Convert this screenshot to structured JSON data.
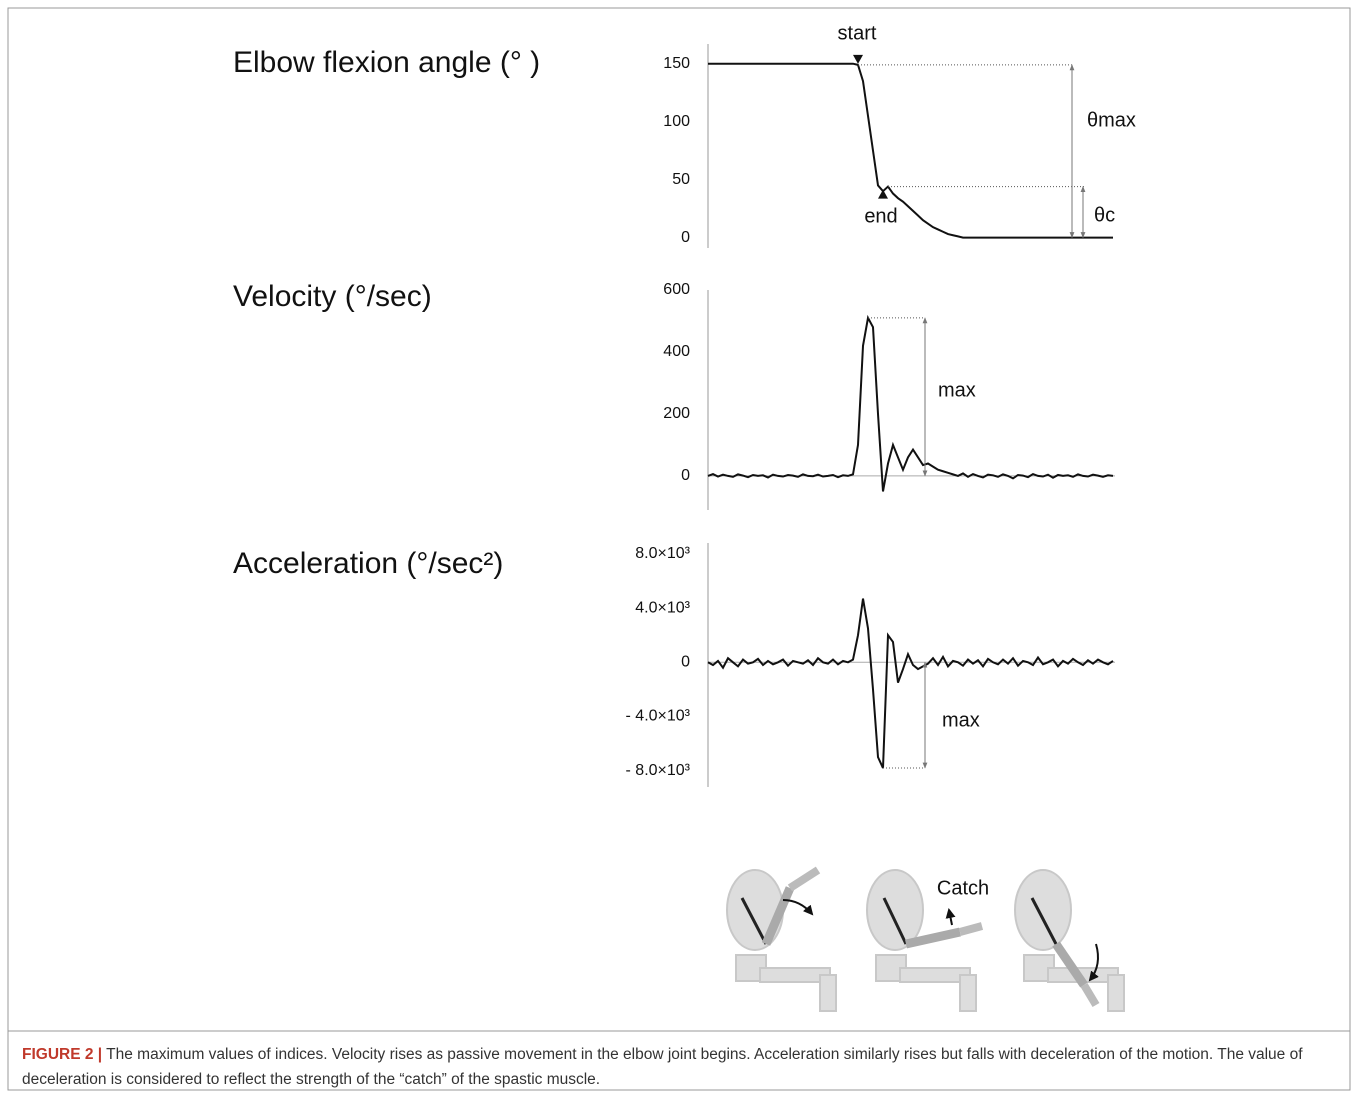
{
  "chart_data": [
    {
      "type": "line",
      "title": "Elbow flexion angle (° )",
      "values": [
        150,
        150,
        150,
        150,
        150,
        150,
        150,
        150,
        150,
        150,
        150,
        150,
        150,
        150,
        150,
        150,
        150,
        150,
        150,
        150,
        150,
        150,
        150,
        150,
        150,
        150,
        150,
        150,
        150,
        150,
        149,
        135,
        105,
        75,
        45,
        40,
        44,
        38,
        34,
        31,
        27,
        23,
        19,
        15,
        12,
        9,
        7,
        5,
        3,
        2,
        1,
        0,
        0,
        0,
        0,
        0,
        0,
        0,
        0,
        0,
        0,
        0,
        0,
        0,
        0,
        0,
        0,
        0,
        0,
        0,
        0,
        0,
        0,
        0,
        0,
        0,
        0,
        0,
        0,
        0,
        0,
        0
      ],
      "color": "#111111",
      "ylim": [
        -9,
        167
      ],
      "yticks": [
        0,
        50,
        100,
        150
      ],
      "zero_line": false,
      "annotations": {
        "start": "start",
        "end": "end",
        "theta_max": "θmax",
        "theta_c": "θc"
      }
    },
    {
      "type": "line",
      "title": "Velocity (°/sec)",
      "values": [
        0,
        6,
        -2,
        4,
        0,
        -3,
        5,
        1,
        -4,
        3,
        0,
        2,
        -5,
        4,
        0,
        -2,
        3,
        1,
        -3,
        5,
        0,
        -1,
        4,
        -2,
        0,
        3,
        -4,
        2,
        0,
        5,
        100,
        420,
        510,
        480,
        200,
        -50,
        40,
        100,
        60,
        20,
        60,
        85,
        60,
        35,
        40,
        30,
        20,
        15,
        10,
        5,
        0,
        8,
        -3,
        6,
        0,
        -5,
        4,
        2,
        -3,
        5,
        0,
        -8,
        3,
        1,
        -4,
        6,
        0,
        -2,
        4,
        -6,
        3,
        0,
        2,
        -3,
        5,
        0,
        -2,
        4,
        1,
        -3,
        2,
        0
      ],
      "color": "#111111",
      "ylim": [
        -110,
        600
      ],
      "yticks": [
        0,
        200,
        400,
        600
      ],
      "zero_line": true,
      "annotations": {
        "max": "max"
      }
    },
    {
      "type": "line",
      "title": "Acceleration (°/sec²)",
      "values": [
        0,
        -200,
        100,
        -400,
        300,
        0,
        -300,
        200,
        -100,
        0,
        250,
        -200,
        100,
        -150,
        0,
        200,
        -250,
        100,
        0,
        -100,
        150,
        -200,
        300,
        0,
        -100,
        200,
        -150,
        100,
        0,
        200,
        2000,
        4700,
        2500,
        -2000,
        -7000,
        -7800,
        2000,
        1500,
        -1500,
        -500,
        600,
        -200,
        -500,
        -300,
        -100,
        300,
        -200,
        400,
        -300,
        100,
        0,
        -250,
        200,
        -100,
        150,
        -300,
        250,
        0,
        -150,
        200,
        -100,
        300,
        -250,
        100,
        0,
        -200,
        350,
        -150,
        0,
        200,
        -300,
        100,
        -100,
        250,
        0,
        -200,
        150,
        -100,
        200,
        0,
        -150,
        100
      ],
      "color": "#111111",
      "ylim": [
        -9200,
        8800
      ],
      "yticks": [
        {
          "value": -8000,
          "label": "- 8.0×10³"
        },
        {
          "value": -4000,
          "label": "- 4.0×10³"
        },
        0,
        {
          "value": 4000,
          "label": "4.0×10³"
        },
        {
          "value": 8000,
          "label": "8.0×10³"
        }
      ],
      "zero_line": true,
      "annotations": {
        "max": "max"
      }
    }
  ],
  "illustration": {
    "catch_label": "Catch"
  },
  "caption": {
    "label": "FIGURE 2 |",
    "text": "The maximum values of indices. Velocity rises as passive movement in the elbow joint begins. Acceleration similarly rises but falls with deceleration of the motion. The value of deceleration is considered to reflect the strength of the “catch” of the spastic muscle."
  }
}
